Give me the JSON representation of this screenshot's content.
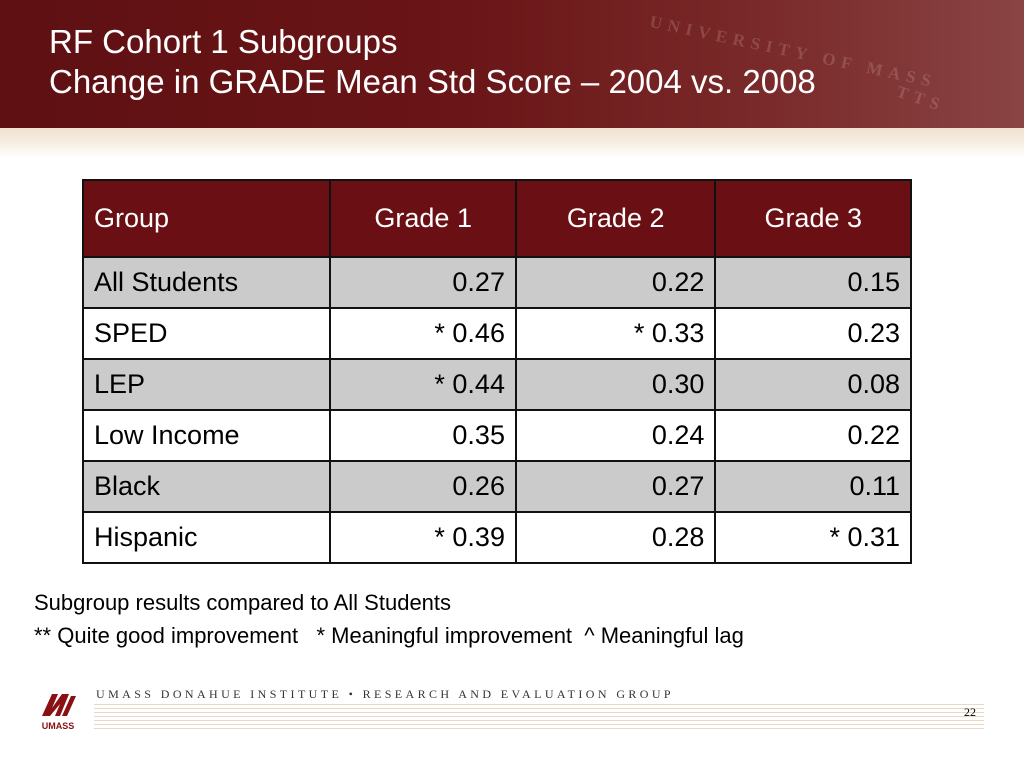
{
  "slide": {
    "title_line1": "RF Cohort 1 Subgroups",
    "title_line2": "Change in GRADE Mean Std Score – 2004 vs. 2008",
    "watermark_line1": "UNIVERSITY OF MASS",
    "watermark_line2": "TTS"
  },
  "table": {
    "headers": [
      "Group",
      "Grade 1",
      "Grade 2",
      "Grade 3"
    ],
    "rows": [
      {
        "group": "All Students",
        "g1": "0.27",
        "g2": "0.22",
        "g3": "0.15"
      },
      {
        "group": "SPED",
        "g1": "* 0.46",
        "g2": "* 0.33",
        "g3": "0.23"
      },
      {
        "group": "LEP",
        "g1": "* 0.44",
        "g2": "0.30",
        "g3": "0.08"
      },
      {
        "group": "Low Income",
        "g1": "0.35",
        "g2": "0.24",
        "g3": "0.22"
      },
      {
        "group": "Black",
        "g1": "0.26",
        "g2": "0.27",
        "g3": "0.11"
      },
      {
        "group": "Hispanic",
        "g1": "* 0.39",
        "g2": "0.28",
        "g3": "* 0.31"
      }
    ]
  },
  "notes": {
    "line1": "Subgroup results compared to All Students",
    "line2": "** Quite good improvement   * Meaningful improvement  ^ Meaningful lag"
  },
  "footer": {
    "org": "UMASS DONAHUE INSTITUTE  •  RESEARCH AND EVALUATION GROUP",
    "logo_text": "UMASS",
    "page_number": "22"
  },
  "colors": {
    "header_maroon": "#6a0f13",
    "row_shade": "#cbcbcb"
  }
}
